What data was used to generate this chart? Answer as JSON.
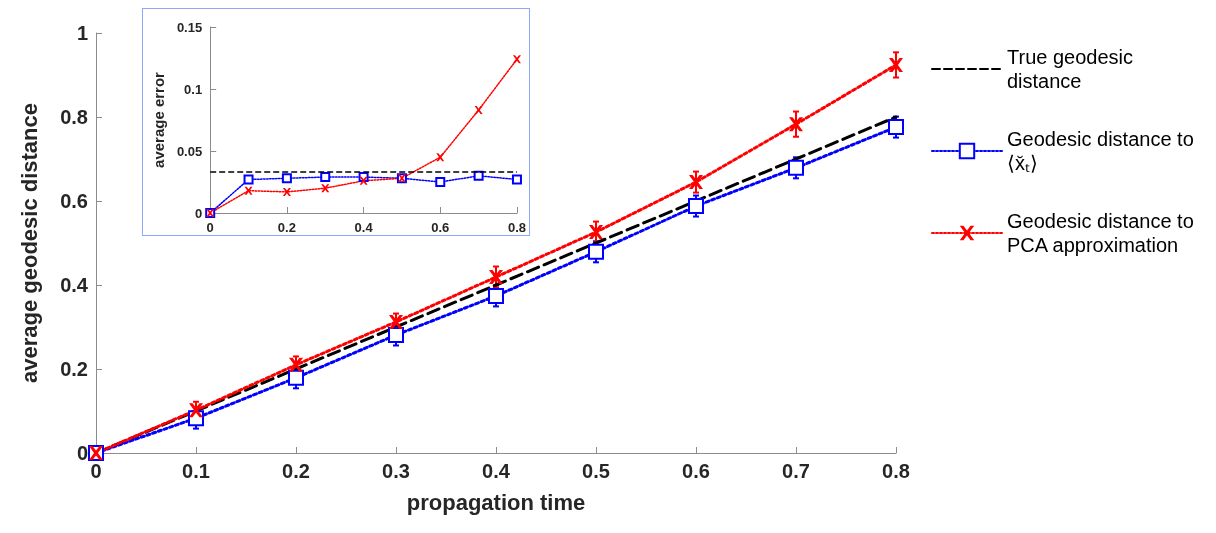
{
  "chart_data": [
    {
      "type": "line",
      "xlabel": "propagation time",
      "ylabel": "average geodesic distance",
      "x": [
        0,
        0.1,
        0.2,
        0.3,
        0.4,
        0.5,
        0.6,
        0.7,
        0.8
      ],
      "series": [
        {
          "name": "True geodesic distance",
          "color": "#000000",
          "line_style": "dashed",
          "marker": "none",
          "values": [
            0,
            0.1,
            0.2,
            0.3,
            0.4,
            0.5,
            0.6,
            0.7,
            0.8
          ]
        },
        {
          "name": "Geodesic distance to ⟨x̆ₜ⟩",
          "color": "#0000ff",
          "line_style": "dotted",
          "marker": "square",
          "values": [
            0,
            0.083,
            0.179,
            0.281,
            0.374,
            0.479,
            0.588,
            0.679,
            0.776
          ],
          "errors": [
            null,
            0.025,
            0.025,
            0.025,
            0.025,
            0.025,
            0.025,
            0.025,
            0.025
          ]
        },
        {
          "name": "Geodesic distance to PCA approximation",
          "color": "#ff0000",
          "line_style": "dotted",
          "marker": "cross",
          "values": [
            0,
            0.102,
            0.21,
            0.312,
            0.419,
            0.526,
            0.645,
            0.783,
            0.924
          ],
          "errors": [
            null,
            0.02,
            0.02,
            0.02,
            0.025,
            0.025,
            0.025,
            0.03,
            0.03
          ]
        }
      ],
      "xlim": [
        0,
        0.8
      ],
      "xticks": [
        0,
        0.1,
        0.2,
        0.3,
        0.4,
        0.5,
        0.6,
        0.7,
        0.8
      ],
      "ylim": [
        0,
        1
      ],
      "yticks": [
        0,
        0.2,
        0.4,
        0.6,
        0.8,
        1
      ],
      "grid": false,
      "legend": "right"
    },
    {
      "type": "line",
      "ylabel": "average error",
      "x": [
        0,
        0.1,
        0.2,
        0.3,
        0.4,
        0.5,
        0.6,
        0.7,
        0.8
      ],
      "series": [
        {
          "color": "#0000ff",
          "line_style": "dotted",
          "marker": "square",
          "values": [
            0,
            0.027,
            0.028,
            0.029,
            0.029,
            0.028,
            0.025,
            0.03,
            0.027
          ]
        },
        {
          "color": "#ff0000",
          "line_style": "dotted",
          "marker": "cross",
          "values": [
            0,
            0.018,
            0.017,
            0.02,
            0.026,
            0.028,
            0.045,
            0.083,
            0.124
          ]
        }
      ],
      "ref_lines": [
        {
          "axis": "y",
          "value": 0.0335,
          "color": "#000000",
          "line_style": "dashed"
        }
      ],
      "xlim": [
        0,
        0.8
      ],
      "xticks": [
        0,
        0.2,
        0.4,
        0.6,
        0.8
      ],
      "ylim": [
        0,
        0.15
      ],
      "yticks": [
        0,
        0.05,
        0.1,
        0.15
      ],
      "grid": false,
      "legend": false
    }
  ]
}
